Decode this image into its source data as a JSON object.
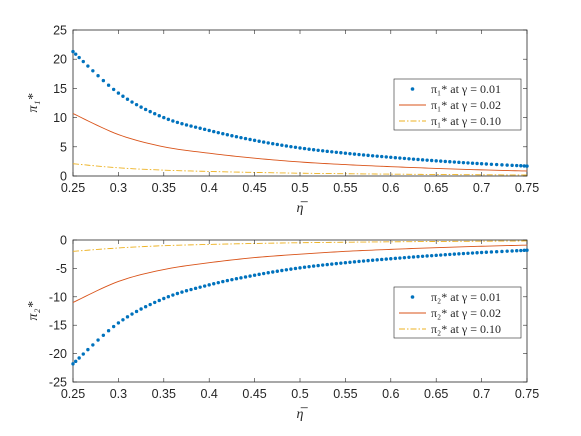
{
  "chart_data": [
    {
      "type": "line",
      "xlabel": "η̅",
      "ylabel": "π₁*",
      "xlim": [
        0.25,
        0.75
      ],
      "ylim": [
        0,
        25
      ],
      "x_ticks": [
        "0.25",
        "0.3",
        "0.35",
        "0.4",
        "0.45",
        "0.5",
        "0.55",
        "0.6",
        "0.65",
        "0.7",
        "0.75"
      ],
      "y_ticks": [
        "0",
        "5",
        "10",
        "15",
        "20",
        "25"
      ],
      "legend_position": "right",
      "grid": false,
      "x": [
        0.25,
        0.3,
        0.35,
        0.4,
        0.45,
        0.5,
        0.55,
        0.6,
        0.65,
        0.7,
        0.75
      ],
      "series": [
        {
          "name": "π₁* at γ = 0.01",
          "style": "dots",
          "color": "#0072BD",
          "values": [
            21.3,
            14.2,
            10.0,
            7.8,
            6.1,
            4.8,
            3.9,
            3.2,
            2.6,
            2.1,
            1.7
          ]
        },
        {
          "name": "π₁* at γ = 0.02",
          "style": "solid",
          "color": "#D95319",
          "values": [
            10.7,
            7.1,
            5.0,
            3.9,
            3.05,
            2.4,
            1.95,
            1.6,
            1.3,
            1.05,
            0.85
          ]
        },
        {
          "name": "π₁* at γ = 0.10",
          "style": "dashdot",
          "color": "#EDB120",
          "values": [
            2.1,
            1.4,
            1.0,
            0.78,
            0.61,
            0.48,
            0.39,
            0.32,
            0.26,
            0.21,
            0.17
          ]
        }
      ]
    },
    {
      "type": "line",
      "xlabel": "η̅",
      "ylabel": "π₂*",
      "xlim": [
        0.25,
        0.75
      ],
      "ylim": [
        -25,
        0
      ],
      "x_ticks": [
        "0.25",
        "0.3",
        "0.35",
        "0.4",
        "0.45",
        "0.5",
        "0.55",
        "0.6",
        "0.65",
        "0.7",
        "0.75"
      ],
      "y_ticks": [
        "-25",
        "-20",
        "-15",
        "-10",
        "-5",
        "0"
      ],
      "legend_position": "right",
      "grid": false,
      "x": [
        0.25,
        0.3,
        0.35,
        0.4,
        0.45,
        0.5,
        0.55,
        0.6,
        0.65,
        0.7,
        0.75
      ],
      "series": [
        {
          "name": "π₂* at γ = 0.01",
          "style": "dots",
          "color": "#0072BD",
          "values": [
            -21.8,
            -14.6,
            -10.3,
            -7.9,
            -6.2,
            -4.9,
            -4.0,
            -3.3,
            -2.7,
            -2.2,
            -1.8
          ]
        },
        {
          "name": "π₂* at γ = 0.02",
          "style": "solid",
          "color": "#D95319",
          "values": [
            -11.0,
            -7.3,
            -5.2,
            -4.0,
            -3.1,
            -2.5,
            -2.0,
            -1.65,
            -1.35,
            -1.1,
            -0.9
          ]
        },
        {
          "name": "π₂* at γ = 0.10",
          "style": "dashdot",
          "color": "#EDB120",
          "values": [
            -2.0,
            -1.4,
            -1.0,
            -0.78,
            -0.61,
            -0.48,
            -0.39,
            -0.32,
            -0.26,
            -0.21,
            -0.17
          ]
        }
      ]
    }
  ]
}
